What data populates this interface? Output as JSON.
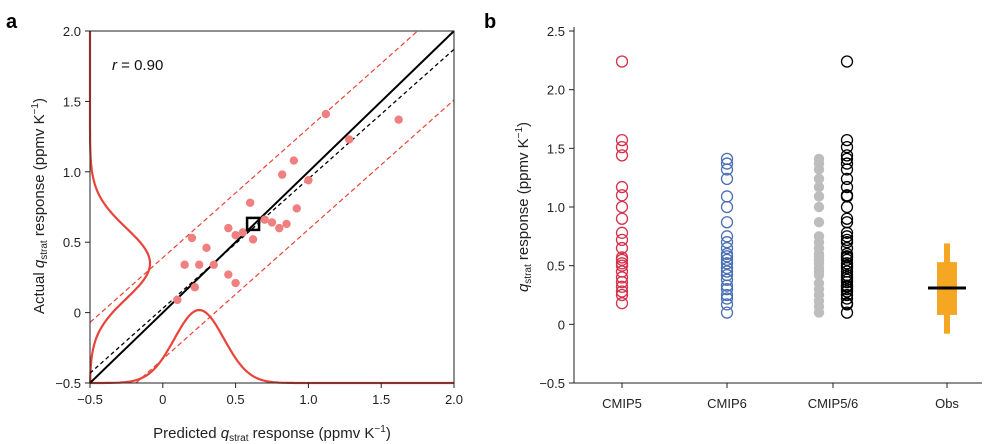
{
  "panels": {
    "a": "a",
    "b": "b"
  },
  "colors": {
    "red": "#e8443a",
    "red_fill": "#f08080",
    "cmip5": "#d6304a",
    "cmip6": "#4a6fb5",
    "grey": "#bdbdbd",
    "black": "#000000",
    "obs": "#f5a623"
  },
  "chart_data": [
    {
      "type": "scatter",
      "panel": "a",
      "x_label": {
        "pre": "Predicted ",
        "q": "q",
        "sub": "strat",
        "post": " response (ppmv K",
        "sup": "−1",
        "end": ")"
      },
      "y_label": {
        "pre": "Actual ",
        "q": "q",
        "sub": "strat",
        "post": " response (ppmv K",
        "sup": "−1",
        "end": ")"
      },
      "xlim": [
        -0.5,
        2.0
      ],
      "ylim": [
        -0.5,
        2.0
      ],
      "xticks": [
        "−0.5",
        "0",
        "0.5",
        "1.0",
        "1.5",
        "2.0"
      ],
      "yticks": [
        "−0.5",
        "0",
        "0.5",
        "1.0",
        "1.5",
        "2.0"
      ],
      "xtick_values": [
        -0.5,
        0,
        0.5,
        1.0,
        1.5,
        2.0
      ],
      "ytick_values": [
        -0.5,
        0,
        0.5,
        1.0,
        1.5,
        2.0
      ],
      "annotation": {
        "r": "r",
        "value": " = 0.90"
      },
      "points": [
        [
          0.1,
          0.09
        ],
        [
          0.15,
          0.34
        ],
        [
          0.2,
          0.53
        ],
        [
          0.22,
          0.18
        ],
        [
          0.25,
          0.34
        ],
        [
          0.3,
          0.46
        ],
        [
          0.35,
          0.34
        ],
        [
          0.45,
          0.27
        ],
        [
          0.45,
          0.6
        ],
        [
          0.5,
          0.21
        ],
        [
          0.5,
          0.55
        ],
        [
          0.55,
          0.57
        ],
        [
          0.6,
          0.78
        ],
        [
          0.62,
          0.52
        ],
        [
          0.7,
          0.66
        ],
        [
          0.75,
          0.64
        ],
        [
          0.8,
          0.6
        ],
        [
          0.82,
          0.98
        ],
        [
          0.85,
          0.63
        ],
        [
          0.9,
          1.08
        ],
        [
          0.92,
          0.74
        ],
        [
          1.0,
          0.94
        ],
        [
          1.12,
          1.41
        ],
        [
          1.28,
          1.23
        ],
        [
          1.62,
          1.37
        ]
      ],
      "mean_point": [
        0.62,
        0.63
      ],
      "one_to_one": [
        [
          -0.5,
          -0.5
        ],
        [
          2.0,
          2.0
        ]
      ],
      "regression": {
        "slope": 0.92,
        "intercept": 0.03
      },
      "prediction_band": 0.36,
      "y_distribution": {
        "mean": 0.35,
        "sd": 0.25
      },
      "x_distribution": {
        "mean": 0.25,
        "sd": 0.17
      }
    },
    {
      "type": "scatter",
      "panel": "b",
      "y_label": {
        "q": "q",
        "sub": "strat",
        "post": " response (ppmv K",
        "sup": "−1",
        "end": ")"
      },
      "ylim": [
        -0.5,
        2.5
      ],
      "yticks": [
        "−0.5",
        "0",
        "0.5",
        "1.0",
        "1.5",
        "2.0",
        "2.5"
      ],
      "ytick_values": [
        -0.5,
        0,
        0.5,
        1.0,
        1.5,
        2.0,
        2.5
      ],
      "categories": [
        "CMIP5",
        "CMIP6",
        "CMIP5/6",
        "Obs"
      ],
      "series": [
        {
          "name": "CMIP5",
          "values": [
            2.24,
            1.57,
            1.51,
            1.44,
            1.17,
            1.1,
            1.0,
            0.9,
            0.78,
            0.72,
            0.65,
            0.57,
            0.55,
            0.52,
            0.5,
            0.45,
            0.4,
            0.36,
            0.32,
            0.28,
            0.25,
            0.18
          ]
        },
        {
          "name": "CMIP6",
          "values": [
            1.41,
            1.37,
            1.32,
            1.24,
            1.09,
            1.0,
            0.87,
            0.75,
            0.7,
            0.65,
            0.6,
            0.58,
            0.55,
            0.52,
            0.48,
            0.45,
            0.42,
            0.38,
            0.33,
            0.3,
            0.25,
            0.22,
            0.17,
            0.1
          ]
        },
        {
          "name": "CMIP5/6 grey",
          "values": [
            1.41,
            1.37,
            1.32,
            1.24,
            1.17,
            1.09,
            1.0,
            0.87,
            0.75,
            0.7,
            0.65,
            0.6,
            0.58,
            0.55,
            0.52,
            0.48,
            0.45,
            0.42,
            0.35,
            0.3,
            0.25,
            0.2,
            0.15,
            0.1
          ]
        },
        {
          "name": "CMIP5/6",
          "values": [
            2.24,
            1.57,
            1.51,
            1.44,
            1.41,
            1.37,
            1.32,
            1.24,
            1.17,
            1.1,
            1.09,
            1.0,
            0.9,
            0.87,
            0.78,
            0.75,
            0.72,
            0.7,
            0.65,
            0.6,
            0.58,
            0.57,
            0.55,
            0.52,
            0.5,
            0.48,
            0.45,
            0.42,
            0.4,
            0.38,
            0.36,
            0.33,
            0.32,
            0.3,
            0.28,
            0.25,
            0.22,
            0.18,
            0.17,
            0.1
          ]
        }
      ],
      "obs": {
        "median": 0.31,
        "inner": [
          0.08,
          0.53
        ],
        "outer": [
          -0.08,
          0.69
        ]
      }
    }
  ]
}
